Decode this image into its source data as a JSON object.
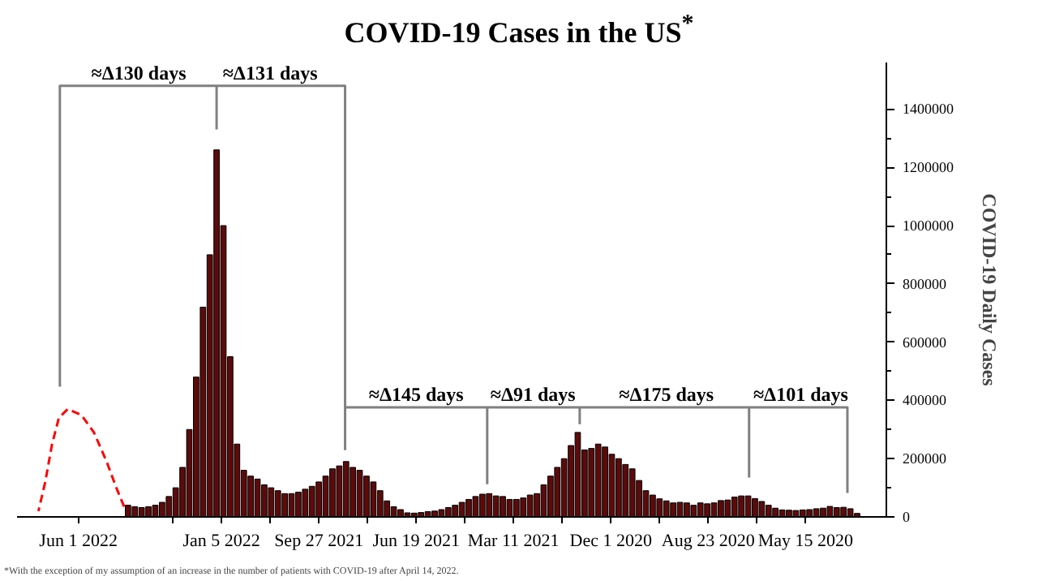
{
  "chart_data": {
    "type": "bar",
    "title": "COVID-19 Cases in the US$^{*}$",
    "ylabel": "COVID-19 Daily Cases",
    "x": [
      "2020-03-23",
      "2020-03-30",
      "2020-04-06",
      "2020-04-13",
      "2020-04-20",
      "2020-04-27",
      "2020-05-04",
      "2020-05-11",
      "2020-05-18",
      "2020-05-25",
      "2020-06-01",
      "2020-06-08",
      "2020-06-15",
      "2020-06-22",
      "2020-06-29",
      "2020-07-06",
      "2020-07-13",
      "2020-07-20",
      "2020-07-27",
      "2020-08-03",
      "2020-08-10",
      "2020-08-17",
      "2020-08-24",
      "2020-08-31",
      "2020-09-07",
      "2020-09-14",
      "2020-09-21",
      "2020-09-28",
      "2020-10-05",
      "2020-10-12",
      "2020-10-19",
      "2020-10-26",
      "2020-11-02",
      "2020-11-09",
      "2020-11-16",
      "2020-11-23",
      "2020-11-30",
      "2020-12-07",
      "2020-12-14",
      "2020-12-21",
      "2020-12-28",
      "2021-01-04",
      "2021-01-11",
      "2021-01-18",
      "2021-01-25",
      "2021-02-01",
      "2021-02-08",
      "2021-02-15",
      "2021-02-22",
      "2021-03-01",
      "2021-03-08",
      "2021-03-15",
      "2021-03-22",
      "2021-03-29",
      "2021-04-05",
      "2021-04-12",
      "2021-04-19",
      "2021-04-26",
      "2021-05-03",
      "2021-05-10",
      "2021-05-17",
      "2021-05-24",
      "2021-05-31",
      "2021-06-07",
      "2021-06-14",
      "2021-06-21",
      "2021-06-28",
      "2021-07-05",
      "2021-07-12",
      "2021-07-19",
      "2021-07-26",
      "2021-08-02",
      "2021-08-09",
      "2021-08-16",
      "2021-08-23",
      "2021-08-30",
      "2021-09-06",
      "2021-09-13",
      "2021-09-20",
      "2021-09-27",
      "2021-10-04",
      "2021-10-11",
      "2021-10-18",
      "2021-10-25",
      "2021-11-01",
      "2021-11-08",
      "2021-11-15",
      "2021-11-22",
      "2021-11-29",
      "2021-12-06",
      "2021-12-13",
      "2021-12-20",
      "2021-12-27",
      "2022-01-03",
      "2022-01-10",
      "2022-01-17",
      "2022-01-24",
      "2022-01-31",
      "2022-02-07",
      "2022-02-14",
      "2022-02-21",
      "2022-02-28",
      "2022-03-07",
      "2022-03-14",
      "2022-03-21",
      "2022-03-28",
      "2022-04-04",
      "2022-04-11"
    ],
    "series": [
      {
        "color": "#5c0a0a",
        "values": [
          12000,
          28000,
          33000,
          32000,
          36000,
          30000,
          28000,
          25000,
          24000,
          22000,
          23000,
          24000,
          30000,
          40000,
          53000,
          63000,
          72000,
          72000,
          68000,
          58000,
          56000,
          48000,
          45000,
          48000,
          40000,
          48000,
          50000,
          48000,
          55000,
          62000,
          75000,
          90000,
          125000,
          165000,
          180000,
          200000,
          215000,
          240000,
          250000,
          235000,
          230000,
          290000,
          245000,
          200000,
          170000,
          140000,
          110000,
          80000,
          75000,
          65000,
          60000,
          60000,
          70000,
          72000,
          80000,
          78000,
          70000,
          60000,
          50000,
          40000,
          32000,
          25000,
          20000,
          18000,
          15000,
          13000,
          14000,
          25000,
          35000,
          55000,
          90000,
          120000,
          140000,
          160000,
          170000,
          190000,
          175000,
          165000,
          140000,
          120000,
          105000,
          95000,
          85000,
          80000,
          80000,
          90000,
          100000,
          110000,
          130000,
          140000,
          160000,
          250000,
          550000,
          1000000,
          1260000,
          900000,
          720000,
          480000,
          300000,
          170000,
          100000,
          70000,
          50000,
          40000,
          35000,
          32000,
          35000,
          40000
        ]
      },
      {
        "type": "line",
        "line_style": "dashed",
        "color": "#ff0000",
        "x": [
          "2022-04-15",
          "2022-04-23",
          "2022-05-03",
          "2022-05-16",
          "2022-05-29",
          "2022-06-12",
          "2022-06-21",
          "2022-06-28",
          "2022-07-05",
          "2022-07-12"
        ],
        "values": [
          35000,
          100000,
          190000,
          290000,
          350000,
          370000,
          340000,
          250000,
          120000,
          20000
        ]
      },
      {
        "type": "line",
        "color": "#808080",
        "x": [
          "2022-06-20",
          "2022-06-20",
          "2021-08-31",
          "2021-08-31",
          null,
          "2022-01-10",
          "2022-01-10",
          null,
          "2021-08-31",
          "2020-04-02",
          "2020-04-02",
          null,
          "2021-04-07",
          "2021-04-07",
          null,
          "2021-01-02",
          "2021-01-02",
          null,
          "2020-07-12",
          "2020-07-12"
        ],
        "values": [
          447000,
          1480000,
          1480000,
          229000,
          null,
          1480000,
          1330000,
          null,
          376000,
          376000,
          82000,
          null,
          376000,
          112000,
          null,
          376000,
          318000,
          null,
          376000,
          135000
        ]
      }
    ],
    "xlim": [
      "2022-08-03",
      "2020-02-22"
    ],
    "xticks": [
      {
        "value": "2022-06-01",
        "label": "Jun 1 2022"
      },
      {
        "value": "2022-02-24",
        "label": null
      },
      {
        "value": "2022-01-05",
        "label": "Jan 5 2022"
      },
      {
        "value": "2021-11-16",
        "label": null
      },
      {
        "value": "2021-09-27",
        "label": "Sep 27 2021"
      },
      {
        "value": "2021-08-08",
        "label": null
      },
      {
        "value": "2021-06-19",
        "label": "Jun 19 2021"
      },
      {
        "value": "2021-04-30",
        "label": null
      },
      {
        "value": "2021-03-11",
        "label": "Mar 11 2021"
      },
      {
        "value": "2021-01-20",
        "label": null
      },
      {
        "value": "2020-12-01",
        "label": "Dec 1 2020"
      },
      {
        "value": "2020-10-12",
        "label": null
      },
      {
        "value": "2020-08-23",
        "label": "Aug 23 2020"
      },
      {
        "value": "2020-07-04",
        "label": null
      },
      {
        "value": "2020-05-15",
        "label": "May 15 2020"
      }
    ],
    "ylim": [
      0,
      1560000
    ],
    "yticks": [
      0,
      200000,
      400000,
      600000,
      800000,
      1000000,
      1200000,
      1400000
    ],
    "grid": false,
    "annotations": [
      {
        "text": "≈Δ130 days",
        "x": "2022-03-31",
        "y": 1480000
      },
      {
        "text": "≈Δ131 days",
        "x": "2021-11-16",
        "y": 1480000
      },
      {
        "text": "≈Δ145 days",
        "x": "2021-06-19",
        "y": 376000
      },
      {
        "text": "≈Δ91 days",
        "x": "2021-02-19",
        "y": 376000
      },
      {
        "text": "≈Δ175 days",
        "x": "2020-10-05",
        "y": 376000
      },
      {
        "text": "≈Δ101 days",
        "x": "2020-05-20",
        "y": 376000
      },
      "*With the exception of my assumption of an increase in the number of patients with COVID-19 after April 14, 2022."
    ]
  }
}
